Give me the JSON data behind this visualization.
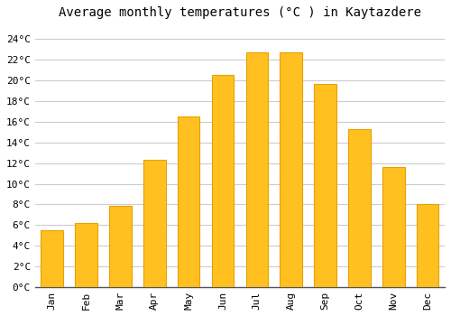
{
  "title": "Average monthly temperatures (°C ) in Kaytazdere",
  "months": [
    "Jan",
    "Feb",
    "Mar",
    "Apr",
    "May",
    "Jun",
    "Jul",
    "Aug",
    "Sep",
    "Oct",
    "Nov",
    "Dec"
  ],
  "values": [
    5.5,
    6.2,
    7.9,
    12.3,
    16.5,
    20.5,
    22.7,
    22.7,
    19.7,
    15.3,
    11.6,
    8.0
  ],
  "bar_color": "#FFC020",
  "bar_edge_color": "#E8A000",
  "background_color": "#FFFFFF",
  "grid_color": "#CCCCCC",
  "ytick_labels": [
    "0°C",
    "2°C",
    "4°C",
    "6°C",
    "8°C",
    "10°C",
    "12°C",
    "14°C",
    "16°C",
    "18°C",
    "20°C",
    "22°C",
    "24°C"
  ],
  "ytick_values": [
    0,
    2,
    4,
    6,
    8,
    10,
    12,
    14,
    16,
    18,
    20,
    22,
    24
  ],
  "ylim": [
    0,
    25.5
  ],
  "title_fontsize": 10,
  "tick_fontsize": 8,
  "font_family": "monospace",
  "bar_width": 0.65
}
